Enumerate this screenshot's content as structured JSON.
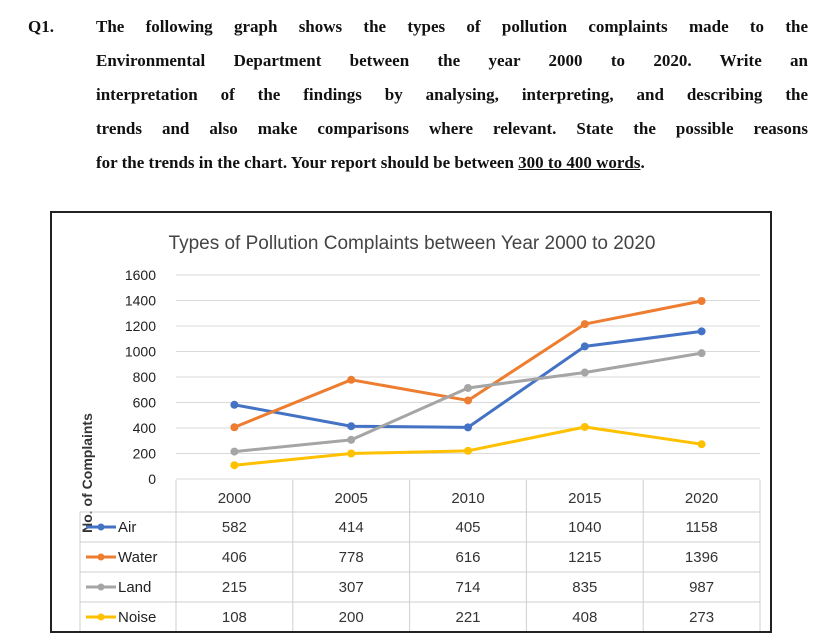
{
  "question": {
    "number": "Q1.",
    "lines": [
      "The following graph shows the types of pollution complaints made to the",
      "Environmental Department between the year 2000 to 2020. Write an",
      "interpretation of the findings by analysing, interpreting, and describing the",
      "trends and also make comparisons where relevant. State the possible reasons"
    ],
    "last_line_prefix": "for the trends in the chart. Your report should be between ",
    "last_line_underlined": "300 to 400 words",
    "last_line_suffix": "."
  },
  "chart_data": {
    "type": "line",
    "title": "Types of Pollution Complaints between Year 2000 to 2020",
    "ylabel": "No. of Complaints",
    "xlabel": "",
    "categories": [
      "2000",
      "2005",
      "2010",
      "2015",
      "2020"
    ],
    "yticks": [
      "0",
      "200",
      "400",
      "600",
      "800",
      "1000",
      "1200",
      "1400",
      "1600"
    ],
    "ylim": [
      0,
      1600
    ],
    "grid": true,
    "legend": "data-table",
    "series": [
      {
        "name": "Air",
        "color": "#4472c4",
        "values": [
          582,
          414,
          405,
          1040,
          1158
        ],
        "labels": [
          "582",
          "414",
          "405",
          "1040",
          "1158"
        ]
      },
      {
        "name": "Water",
        "color": "#ed7d31",
        "values": [
          406,
          778,
          616,
          1215,
          1396
        ],
        "labels": [
          "406",
          "778",
          "616",
          "1215",
          "1396"
        ]
      },
      {
        "name": "Land",
        "color": "#a5a5a5",
        "values": [
          215,
          307,
          714,
          835,
          987
        ],
        "labels": [
          "215",
          "307",
          "714",
          "835",
          "987"
        ]
      },
      {
        "name": "Noise",
        "color": "#ffc000",
        "values": [
          108,
          200,
          221,
          408,
          273
        ],
        "labels": [
          "108",
          "200",
          "221",
          "408",
          "273"
        ]
      }
    ]
  }
}
